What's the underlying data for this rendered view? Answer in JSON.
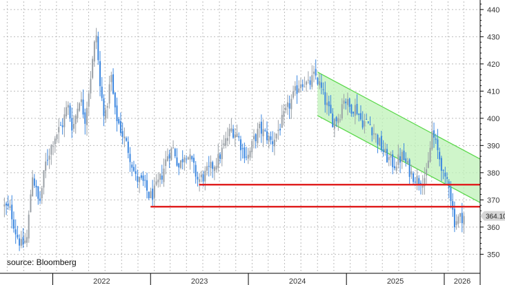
{
  "chart_data": {
    "type": "candlestick",
    "source_note": "source: Bloomberg",
    "y_axis": {
      "min": 343,
      "max": 443,
      "ticks": [
        350,
        360,
        370,
        380,
        390,
        400,
        410,
        420,
        430,
        440
      ],
      "position": "right"
    },
    "x_axis": {
      "start": "2021-07-01",
      "end": "2026-05-15",
      "tick_labels": [
        "2022",
        "2023",
        "2024",
        "2025",
        "2026"
      ],
      "year_boundaries": [
        "2022-01-01",
        "2023-01-01",
        "2024-01-01",
        "2025-01-01",
        "2026-01-01"
      ]
    },
    "grid": true,
    "colors": {
      "up": "#9aa0a6",
      "down": "#3a86e0",
      "support": "#e02020",
      "channel_fill": "#bff2b8",
      "channel_edge": "#5ad84a",
      "grid": "#bbbbbb"
    },
    "last_value_label": "364.10",
    "last_value": 364.1,
    "support_lines": [
      {
        "value": 367.5,
        "from": "2023-01-01",
        "to": "2026-05-15"
      },
      {
        "value": 375.6,
        "from": "2023-07-01",
        "to": "2026-05-15"
      }
    ],
    "channel": {
      "upper": [
        [
          "2024-09-15",
          417.0
        ],
        [
          "2026-05-15",
          385.0
        ]
      ],
      "lower": [
        [
          "2024-09-15",
          401.0
        ],
        [
          "2026-05-15",
          369.0
        ]
      ]
    },
    "series_anchors": [
      [
        "2021-07-01",
        368
      ],
      [
        "2021-08-01",
        366
      ],
      [
        "2021-08-20",
        358
      ],
      [
        "2021-09-10",
        353
      ],
      [
        "2021-10-01",
        356
      ],
      [
        "2021-10-20",
        380
      ],
      [
        "2021-11-15",
        368
      ],
      [
        "2021-12-10",
        384
      ],
      [
        "2022-01-10",
        393
      ],
      [
        "2022-02-10",
        398
      ],
      [
        "2022-03-01",
        405
      ],
      [
        "2022-03-20",
        396
      ],
      [
        "2022-04-15",
        408
      ],
      [
        "2022-05-05",
        400
      ],
      [
        "2022-06-01",
        420
      ],
      [
        "2022-06-15",
        432
      ],
      [
        "2022-07-01",
        410
      ],
      [
        "2022-07-20",
        400
      ],
      [
        "2022-08-10",
        416
      ],
      [
        "2022-08-25",
        402
      ],
      [
        "2022-09-15",
        396
      ],
      [
        "2022-10-15",
        388
      ],
      [
        "2022-11-10",
        378
      ],
      [
        "2022-12-10",
        376
      ],
      [
        "2023-01-01",
        371
      ],
      [
        "2023-01-20",
        373
      ],
      [
        "2023-02-15",
        379
      ],
      [
        "2023-03-10",
        387
      ],
      [
        "2023-04-01",
        389
      ],
      [
        "2023-04-20",
        382
      ],
      [
        "2023-05-15",
        388
      ],
      [
        "2023-06-10",
        383
      ],
      [
        "2023-07-01",
        377
      ],
      [
        "2023-07-25",
        379
      ],
      [
        "2023-08-20",
        382
      ],
      [
        "2023-09-15",
        385
      ],
      [
        "2023-10-10",
        391
      ],
      [
        "2023-11-01",
        396
      ],
      [
        "2023-11-25",
        394
      ],
      [
        "2023-12-15",
        388
      ],
      [
        "2024-01-05",
        386
      ],
      [
        "2024-01-25",
        392
      ],
      [
        "2024-02-15",
        396
      ],
      [
        "2024-03-10",
        394
      ],
      [
        "2024-04-01",
        391
      ],
      [
        "2024-05-01",
        397
      ],
      [
        "2024-06-01",
        404
      ],
      [
        "2024-06-25",
        409
      ],
      [
        "2024-07-20",
        414
      ],
      [
        "2024-08-15",
        412
      ],
      [
        "2024-09-10",
        416
      ],
      [
        "2024-10-01",
        411
      ],
      [
        "2024-10-25",
        404
      ],
      [
        "2024-11-15",
        399
      ],
      [
        "2024-12-10",
        401
      ],
      [
        "2024-12-25",
        408
      ],
      [
        "2025-01-15",
        404
      ],
      [
        "2025-02-10",
        404
      ],
      [
        "2025-03-01",
        399
      ],
      [
        "2025-04-01",
        398
      ],
      [
        "2025-05-01",
        392
      ],
      [
        "2025-06-01",
        386
      ],
      [
        "2025-07-01",
        383
      ],
      [
        "2025-08-01",
        386
      ],
      [
        "2025-09-01",
        380
      ],
      [
        "2025-10-01",
        377
      ],
      [
        "2025-11-01",
        379
      ],
      [
        "2025-11-20",
        395
      ],
      [
        "2025-12-10",
        388
      ],
      [
        "2025-12-25",
        383
      ],
      [
        "2026-01-05",
        376
      ],
      [
        "2026-01-20",
        378
      ],
      [
        "2026-02-10",
        362
      ],
      [
        "2026-02-25",
        363
      ],
      [
        "2026-03-15",
        364.1
      ]
    ]
  }
}
